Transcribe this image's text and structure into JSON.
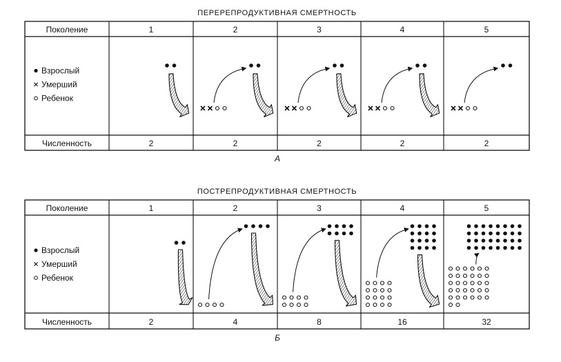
{
  "panels": [
    {
      "key": "A",
      "title": "ПЕРЕРЕПРОДУКТИВНАЯ СМЕРТНОСТЬ",
      "caption": "А",
      "header_label": "Поколение",
      "footer_label": "Численность",
      "legend": [
        {
          "marker": "filled-dot-icon",
          "label": "Взрослый"
        },
        {
          "marker": "cross-icon",
          "label": "Умерший"
        },
        {
          "marker": "open-dot-icon",
          "label": "Ребенок"
        }
      ],
      "generations": [
        {
          "label": "1",
          "count": "2",
          "adults": 2,
          "dead": 0,
          "children": 0
        },
        {
          "label": "2",
          "count": "2",
          "adults": 2,
          "dead": 2,
          "children": 2
        },
        {
          "label": "3",
          "count": "2",
          "adults": 2,
          "dead": 2,
          "children": 2
        },
        {
          "label": "4",
          "count": "2",
          "adults": 2,
          "dead": 2,
          "children": 2
        },
        {
          "label": "5",
          "count": "2",
          "adults": 2,
          "dead": 2,
          "children": 2
        }
      ]
    },
    {
      "key": "B",
      "title": "ПОСТРЕПРОДУКТИВНАЯ СМЕРТНОСТЬ",
      "caption": "Б",
      "header_label": "Поколение",
      "footer_label": "Численность",
      "legend": [
        {
          "marker": "filled-dot-icon",
          "label": "Взрослый"
        },
        {
          "marker": "cross-icon",
          "label": "Умерший"
        },
        {
          "marker": "open-dot-icon",
          "label": "Ребенок"
        }
      ],
      "generations": [
        {
          "label": "1",
          "count": "2",
          "adults": 2,
          "dead": 0,
          "children": 0
        },
        {
          "label": "2",
          "count": "4",
          "adults": 4,
          "dead": 0,
          "children": 4
        },
        {
          "label": "3",
          "count": "8",
          "adults": 8,
          "dead": 0,
          "children": 8
        },
        {
          "label": "4",
          "count": "16",
          "adults": 16,
          "dead": 0,
          "children": 16
        },
        {
          "label": "5",
          "count": "32",
          "adults": 32,
          "dead": 0,
          "children": 32
        }
      ]
    }
  ]
}
